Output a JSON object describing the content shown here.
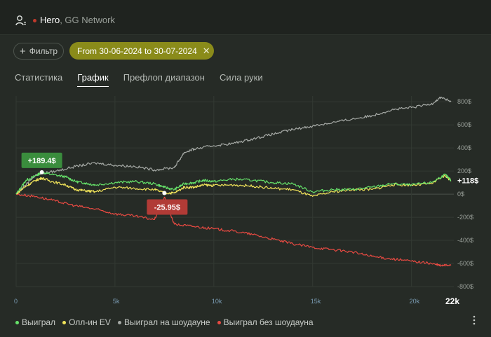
{
  "header": {
    "hero_name": "Hero",
    "network": ", GG Network",
    "status_color": "#c0392b",
    "icon": "user-icon"
  },
  "filters": {
    "filter_label": "Фильтр",
    "date_range": "From 30-06-2024 to 30-07-2024",
    "chip_color": "#8a8b1a"
  },
  "tabs": [
    {
      "label": "Статистика",
      "active": false
    },
    {
      "label": "График",
      "active": true
    },
    {
      "label": "Префлоп диапазон",
      "active": false
    },
    {
      "label": "Сила руки",
      "active": false
    }
  ],
  "chart_data": {
    "type": "line",
    "x_ticks": [
      "0",
      "5k",
      "10k",
      "15k",
      "20k",
      "22k"
    ],
    "y_ticks": [
      "800$",
      "600$",
      "400$",
      "200$",
      "0$",
      "-200$",
      "-400$",
      "-600$",
      "-800$"
    ],
    "xlim": [
      0,
      22000
    ],
    "ylim": [
      -800,
      850
    ],
    "grid": true,
    "series": [
      {
        "name": "Выиграл",
        "color": "#66e26a",
        "x": [
          0,
          500,
          1000,
          1300,
          1800,
          2500,
          3000,
          3500,
          4000,
          5000,
          6000,
          7000,
          7500,
          8000,
          8500,
          9000,
          9500,
          10000,
          11000,
          12000,
          13000,
          14000,
          15000,
          16000,
          17000,
          18000,
          19000,
          20000,
          21000,
          21700,
          22000
        ],
        "y": [
          0,
          120,
          160,
          189.4,
          170,
          150,
          110,
          95,
          80,
          100,
          110,
          90,
          60,
          40,
          90,
          100,
          120,
          110,
          130,
          120,
          100,
          90,
          20,
          40,
          40,
          60,
          90,
          80,
          100,
          170,
          118
        ]
      },
      {
        "name": "Олл-ин EV",
        "color": "#f0e35a",
        "x": [
          0,
          500,
          1000,
          1300,
          1800,
          2500,
          3000,
          3500,
          4000,
          5000,
          6000,
          7000,
          7500,
          8000,
          8500,
          9000,
          9500,
          10000,
          11000,
          12000,
          13000,
          14000,
          15000,
          16000,
          17000,
          18000,
          19000,
          20000,
          21000,
          21700,
          22000
        ],
        "y": [
          0,
          70,
          120,
          140,
          110,
          80,
          40,
          30,
          20,
          60,
          50,
          40,
          10,
          10,
          60,
          60,
          80,
          75,
          80,
          70,
          50,
          40,
          -20,
          20,
          40,
          40,
          80,
          80,
          90,
          160,
          118
        ]
      },
      {
        "name": "Выиграл на шоудауне",
        "color": "#a6aaa6",
        "x": [
          0,
          1000,
          2000,
          3000,
          4000,
          5000,
          6000,
          7000,
          8000,
          8500,
          9000,
          10000,
          11000,
          12000,
          13000,
          14000,
          15000,
          16000,
          17000,
          18000,
          19000,
          20000,
          21000,
          21500,
          22000
        ],
        "y": [
          0,
          170,
          200,
          240,
          270,
          250,
          240,
          210,
          230,
          360,
          390,
          420,
          440,
          480,
          520,
          560,
          590,
          620,
          650,
          680,
          730,
          750,
          780,
          840,
          800
        ]
      },
      {
        "name": "Выиграл без шоудауна",
        "color": "#e84a42",
        "x": [
          0,
          1000,
          2000,
          3000,
          4000,
          5000,
          6000,
          7000,
          7500,
          8000,
          9000,
          10000,
          11000,
          12000,
          13000,
          14000,
          15000,
          16000,
          17000,
          18000,
          19000,
          20000,
          21000,
          21500,
          22000
        ],
        "y": [
          0,
          -20,
          -60,
          -100,
          -130,
          -170,
          -190,
          -220,
          -25.95,
          -260,
          -280,
          -300,
          -320,
          -350,
          -390,
          -430,
          -460,
          -480,
          -500,
          -540,
          -560,
          -580,
          -600,
          -620,
          -610
        ]
      }
    ],
    "annotations": [
      {
        "text": "+189.4$",
        "series": 0,
        "x": 1300,
        "y": 189.4,
        "color": "#3a8d3d"
      },
      {
        "text": "-25.95$",
        "series": 1,
        "x": 7500,
        "y": -25.95,
        "color": "#b13b36"
      }
    ],
    "end_label": "+118$"
  },
  "legend": [
    {
      "label": "Выиграл",
      "color": "#66e26a"
    },
    {
      "label": "Олл-ин EV",
      "color": "#f0e35a"
    },
    {
      "label": "Выиграл на шоудауне",
      "color": "#a6aaa6"
    },
    {
      "label": "Выиграл без шоудауна",
      "color": "#e84a42"
    }
  ]
}
